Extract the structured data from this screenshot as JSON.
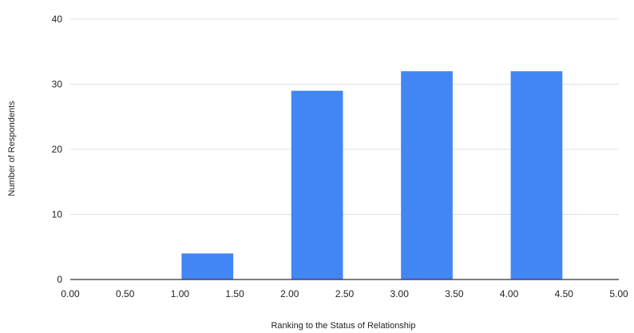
{
  "chart_data": {
    "type": "bar",
    "title": "",
    "xlabel": "Ranking to the Status of Relationship",
    "ylabel": "Number of Respondents",
    "xlim": [
      0,
      5
    ],
    "ylim": [
      0,
      40
    ],
    "x_ticks": [
      "0.00",
      "0.50",
      "1.00",
      "1.50",
      "2.00",
      "2.50",
      "3.00",
      "3.50",
      "4.00",
      "4.50",
      "5.00"
    ],
    "y_ticks": [
      "0",
      "10",
      "20",
      "30",
      "40"
    ],
    "bins": [
      {
        "start": 0.0,
        "end": 0.5,
        "value": 0
      },
      {
        "start": 1.0,
        "end": 1.5,
        "value": 4
      },
      {
        "start": 2.0,
        "end": 2.5,
        "value": 29
      },
      {
        "start": 3.0,
        "end": 3.5,
        "value": 32
      },
      {
        "start": 4.0,
        "end": 4.5,
        "value": 32
      }
    ],
    "bar_color": "#4285f4",
    "grid": true,
    "legend": "none"
  }
}
